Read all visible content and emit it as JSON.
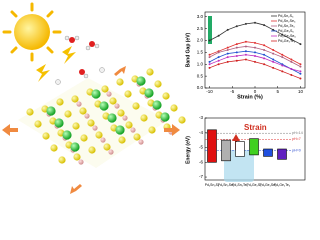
{
  "chart_data": [
    {
      "type": "line",
      "xlabel": "Strain (%)",
      "ylabel": "Band Gap (eV)",
      "x": [
        -10,
        -8,
        -6,
        -4,
        -2,
        0,
        2,
        4,
        6,
        8,
        10
      ],
      "xlim": [
        -11,
        11
      ],
      "xticks": [
        -10,
        -5,
        0,
        5,
        10
      ],
      "ylim": [
        0,
        3.2
      ],
      "yticks": [
        {
          "value": 0,
          "label": "0.0"
        },
        {
          "value": 0.5,
          "label": "0.5"
        },
        {
          "value": 1,
          "label": "1.0"
        },
        {
          "value": 1.5,
          "label": "1.5"
        },
        {
          "value": 2,
          "label": "2.0"
        },
        {
          "value": 2.5,
          "label": "2.5"
        },
        {
          "value": 3,
          "label": "3.0"
        }
      ],
      "legend": "upper right",
      "series": [
        {
          "name": "Pd₂Sn₂S₆",
          "color": "#333333",
          "values": [
            2.0,
            2.2,
            2.45,
            2.6,
            2.7,
            2.75,
            2.65,
            2.45,
            2.25,
            2.05,
            1.85
          ]
        },
        {
          "name": "Pd₂Sn₂Se₆",
          "color": "#e03030",
          "values": [
            1.4,
            1.55,
            1.7,
            1.85,
            1.95,
            1.9,
            1.8,
            1.6,
            1.4,
            1.2,
            1.0
          ]
        },
        {
          "name": "Pd₂Sn₂Te₆",
          "color": "#b06080",
          "values": [
            1.3,
            1.5,
            1.6,
            1.7,
            1.75,
            1.7,
            1.6,
            1.45,
            1.3,
            1.1,
            0.9
          ]
        },
        {
          "name": "Pd₂Ge₂S₆",
          "color": "#2050d0",
          "values": [
            1.1,
            1.3,
            1.45,
            1.5,
            1.55,
            1.5,
            1.4,
            1.2,
            1.0,
            0.8,
            0.6
          ]
        },
        {
          "name": "Pd₂Ge₂Se₆",
          "color": "#c030c0",
          "values": [
            1.0,
            1.15,
            1.3,
            1.35,
            1.4,
            1.35,
            1.25,
            1.1,
            0.95,
            0.8,
            0.7
          ]
        },
        {
          "name": "Pd₂Ge₂Te₆",
          "color": "#d02020",
          "values": [
            0.85,
            1.0,
            1.1,
            1.15,
            1.2,
            1.1,
            1.0,
            0.85,
            0.7,
            0.55,
            0.4
          ]
        }
      ]
    },
    {
      "type": "floating-bar",
      "ylabel": "Energy (eV)",
      "annotation": "Strain",
      "categories": [
        "Pd₂Sn₂S₆",
        "Pd₂Sn₂Se₆",
        "Pd₂Sn₂Te₆",
        "Pd₂Ge₂S₆",
        "Pd₂Ge₂Se₆",
        "Pd₂Ge₂Te₆"
      ],
      "colors": [
        "#e01010",
        "#b0b0b0",
        "#ffffff",
        "#40d020",
        "#2050e0",
        "#6020c0"
      ],
      "low": [
        -6.0,
        -5.9,
        -5.6,
        -5.5,
        -5.6,
        -5.8
      ],
      "high": [
        -3.8,
        -4.5,
        -4.6,
        -4.4,
        -5.1,
        -5.1
      ],
      "ylim": [
        -7.2,
        -3.0
      ],
      "yticks": [
        -7,
        -6,
        -5,
        -4,
        -3
      ],
      "references": [
        {
          "label": "pH=14",
          "value": -4.03,
          "color": "#777777"
        },
        {
          "label": "pH=7",
          "value": -4.44,
          "color": "#e03030"
        },
        {
          "label": "pH=0",
          "value": -5.2,
          "color": "#3050d0"
        }
      ]
    }
  ]
}
